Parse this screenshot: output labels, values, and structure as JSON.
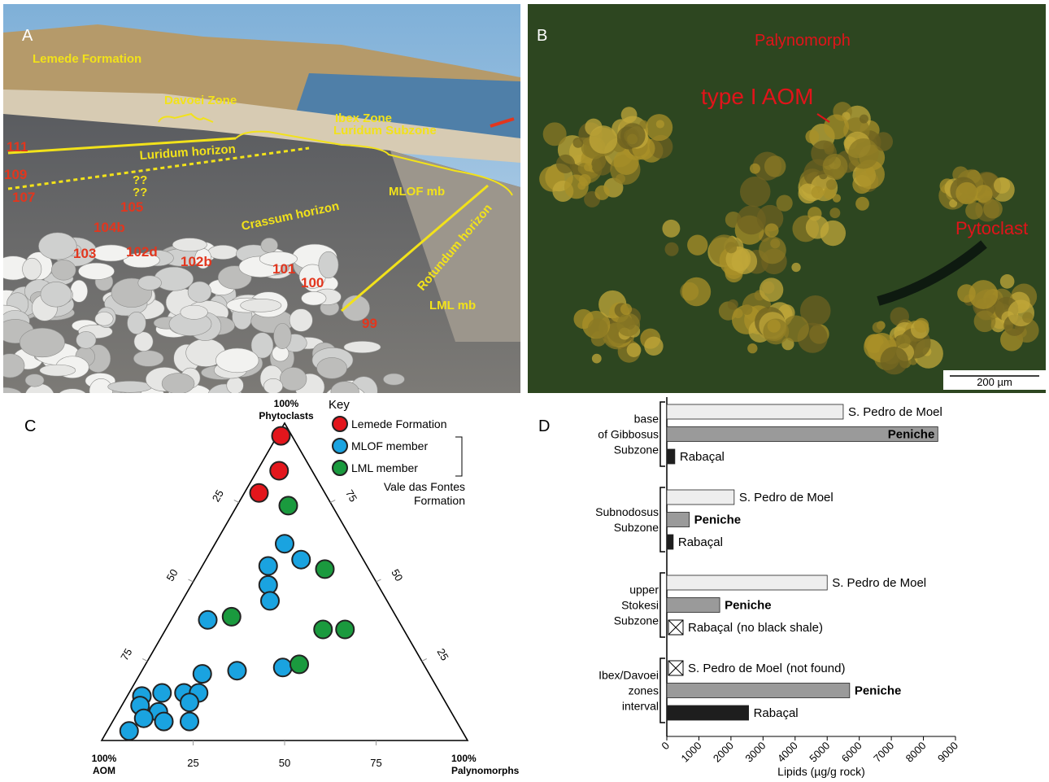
{
  "panel_a": {
    "label": "A",
    "annotations": [
      "Lemede Formation",
      "Davoei Zone",
      "Ibex Zone",
      "Luridum Subzone",
      "Luridum horizon",
      "MLOF mb",
      "Crassum horizon",
      "Rotundum horizon",
      "LML mb",
      "??",
      "??"
    ],
    "beds": [
      "111",
      "109",
      "107",
      "105",
      "104b",
      "103",
      "102d",
      "102b",
      "101",
      "100",
      "99"
    ]
  },
  "panel_b": {
    "label": "B",
    "annotations": [
      "Palynomorph",
      "type I AOM",
      "Pytoclast"
    ],
    "scale_bar": "200 µm"
  },
  "panel_c": {
    "label": "C"
  },
  "panel_d": {
    "label": "D"
  },
  "chart_data": [
    {
      "type": "ternary",
      "corner_labels": {
        "top": [
          "100%",
          "Phytoclasts"
        ],
        "left": [
          "100%",
          "AOM"
        ],
        "right": [
          "100%",
          "Palynomorphs"
        ]
      },
      "ticks": [
        25,
        50,
        75
      ],
      "legend_title": "Key",
      "legend_bracket": [
        "Vale das Fontes",
        "Formation"
      ],
      "series": [
        {
          "name": "Lemede Formation",
          "color": "#e3161c",
          "phytoclasts": [
            96,
            85,
            78
          ],
          "palynomorphs": [
            1,
            6,
            4
          ],
          "aom": [
            3,
            9,
            18
          ]
        },
        {
          "name": "MLOF member",
          "color": "#1aa3e0",
          "phytoclasts": [
            62,
            57,
            55,
            49,
            44,
            38,
            22,
            23,
            21,
            15,
            15,
            14,
            15,
            12,
            11,
            9,
            7,
            6,
            6,
            3
          ],
          "palynomorphs": [
            19,
            26,
            18,
            21,
            24,
            10,
            26,
            38,
            17,
            15,
            19,
            4,
            9,
            18,
            5,
            11,
            8,
            14,
            21,
            6
          ],
          "aom": [
            19,
            17,
            27,
            30,
            32,
            52,
            52,
            39,
            62,
            70,
            66,
            82,
            76,
            70,
            84,
            80,
            85,
            80,
            73,
            91
          ]
        },
        {
          "name": "LML member",
          "color": "#1a9a3e",
          "phytoclasts": [
            74,
            54,
            39,
            35,
            35,
            24
          ],
          "palynomorphs": [
            14,
            34,
            16,
            43,
            49,
            42
          ],
          "aom": [
            12,
            12,
            45,
            22,
            16,
            34
          ]
        }
      ]
    },
    {
      "type": "bar",
      "orientation": "horizontal",
      "categories": [
        [
          "base",
          "of Gibbosus",
          "Subzone"
        ],
        [
          "Subnodosus",
          "Subzone"
        ],
        [
          "upper",
          "Stokesi",
          "Subzone"
        ],
        [
          "Ibex/Davoei",
          "zones",
          "interval"
        ]
      ],
      "series": [
        {
          "name": "S. Pedro de Moel",
          "color": "#eeeeee",
          "bold": false,
          "values": [
            5500,
            2100,
            5000,
            null
          ],
          "notes": [
            null,
            null,
            null,
            "(not found)"
          ]
        },
        {
          "name": "Peniche",
          "color": "#9a9a9a",
          "bold": true,
          "values": [
            8450,
            700,
            1650,
            5700
          ],
          "notes": [
            null,
            null,
            null,
            null
          ]
        },
        {
          "name": "Rabaçal",
          "color": "#1e1e1e",
          "bold": false,
          "values": [
            250,
            200,
            null,
            2550
          ],
          "notes": [
            null,
            null,
            "(no black shale)",
            null
          ]
        }
      ],
      "xlim": [
        0,
        9000
      ],
      "xticks": [
        0,
        1000,
        2000,
        3000,
        4000,
        5000,
        6000,
        7000,
        8000,
        9000
      ],
      "xlabel": "Lipids (µg/g rock)"
    }
  ]
}
